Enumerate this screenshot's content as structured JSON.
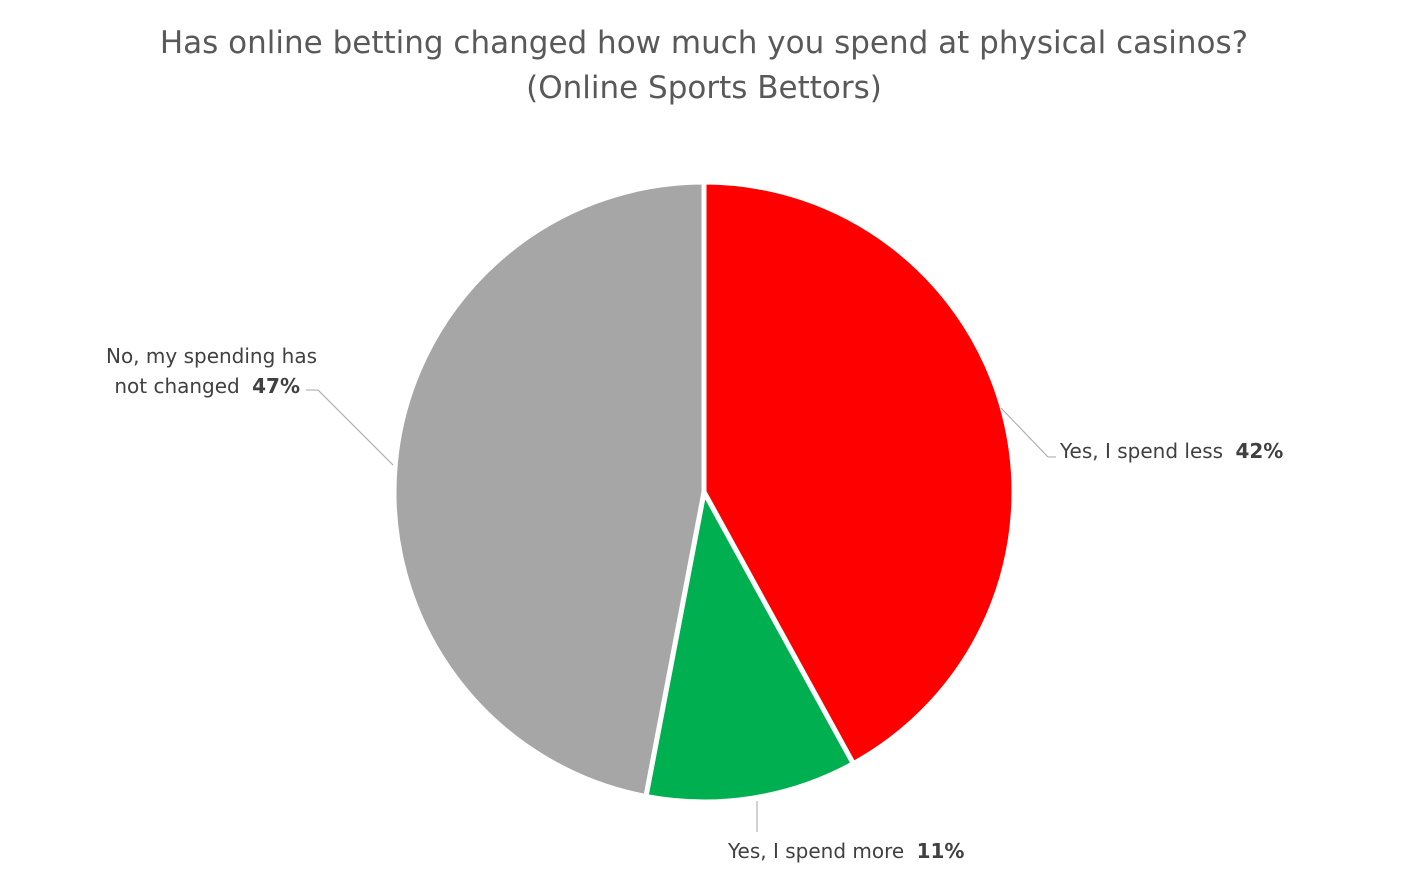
{
  "chart_data": {
    "type": "pie",
    "title": "Has online betting changed how much you spend at physical casinos?",
    "subtitle": "(Online Sports Bettors)",
    "slices": [
      {
        "label": "Yes, I spend less",
        "value": 42,
        "value_label": "42%",
        "color": "#ff0000"
      },
      {
        "label": "Yes, I spend more",
        "value": 11,
        "value_label": "11%",
        "color": "#00b050"
      },
      {
        "label_line1": "No, my spending has",
        "label": "not changed",
        "value": 47,
        "value_label": "47%",
        "color": "#a6a6a6"
      }
    ],
    "legend": "none"
  }
}
